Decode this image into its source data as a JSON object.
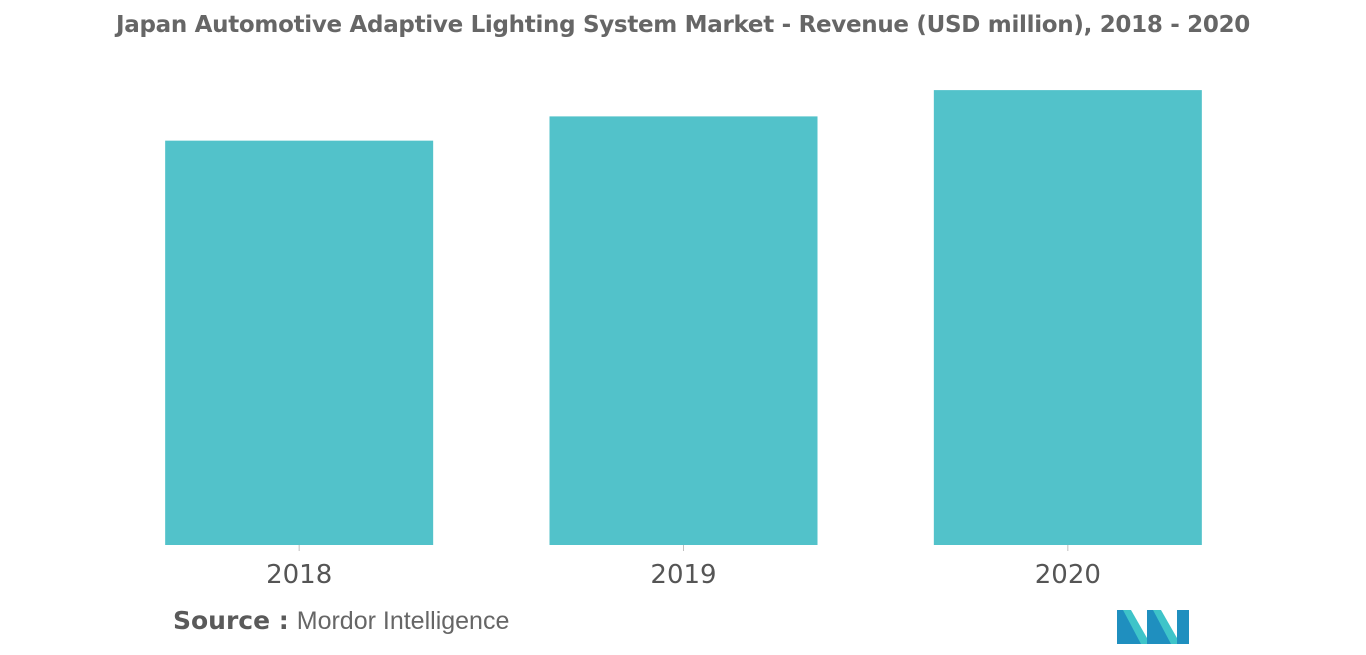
{
  "chart_data": {
    "type": "bar",
    "title": "Japan Automotive Adaptive Lighting System Market - Revenue (USD million), 2018 - 2020",
    "categories": [
      "2018",
      "2019",
      "2020"
    ],
    "values": [
      100,
      106,
      112.5
    ],
    "ylim": [
      0,
      115
    ],
    "xlabel": "",
    "ylabel": "",
    "grid": false,
    "bar_color": "#52c2ca"
  },
  "source": {
    "label": "Source :",
    "value": "Mordor Intelligence"
  },
  "logo": {
    "icon": "mordor-intelligence-logo-icon",
    "colors": [
      "#1f8fbf",
      "#3ec4c9"
    ]
  }
}
